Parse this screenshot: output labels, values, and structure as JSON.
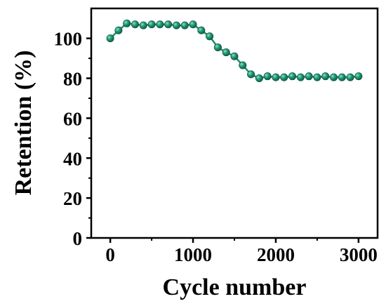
{
  "chart_data": {
    "type": "line",
    "title": "",
    "xlabel": "Cycle number",
    "ylabel": "Retention (%)",
    "xlim": [
      -230,
      3230
    ],
    "ylim": [
      0,
      115
    ],
    "xticks": [
      0,
      1000,
      2000,
      3000
    ],
    "yticks": [
      0,
      20,
      40,
      60,
      80,
      100
    ],
    "grid": false,
    "legend": "none",
    "series": [
      {
        "color": "#1f8f6e",
        "marker": "circle",
        "x": [
          0,
          100,
          200,
          300,
          400,
          500,
          600,
          700,
          800,
          900,
          1000,
          1100,
          1200,
          1300,
          1400,
          1500,
          1600,
          1700,
          1800,
          1900,
          2000,
          2100,
          2200,
          2300,
          2400,
          2500,
          2600,
          2700,
          2800,
          2900,
          3000
        ],
        "y": [
          100,
          104,
          107.5,
          107,
          106.5,
          107,
          107,
          107,
          106.5,
          106.5,
          107,
          104,
          101,
          95.5,
          93,
          91,
          86.5,
          82,
          80,
          81,
          80.5,
          80.5,
          81,
          80.5,
          81,
          80.5,
          81,
          80.5,
          80.5,
          80.5,
          81
        ]
      }
    ]
  }
}
